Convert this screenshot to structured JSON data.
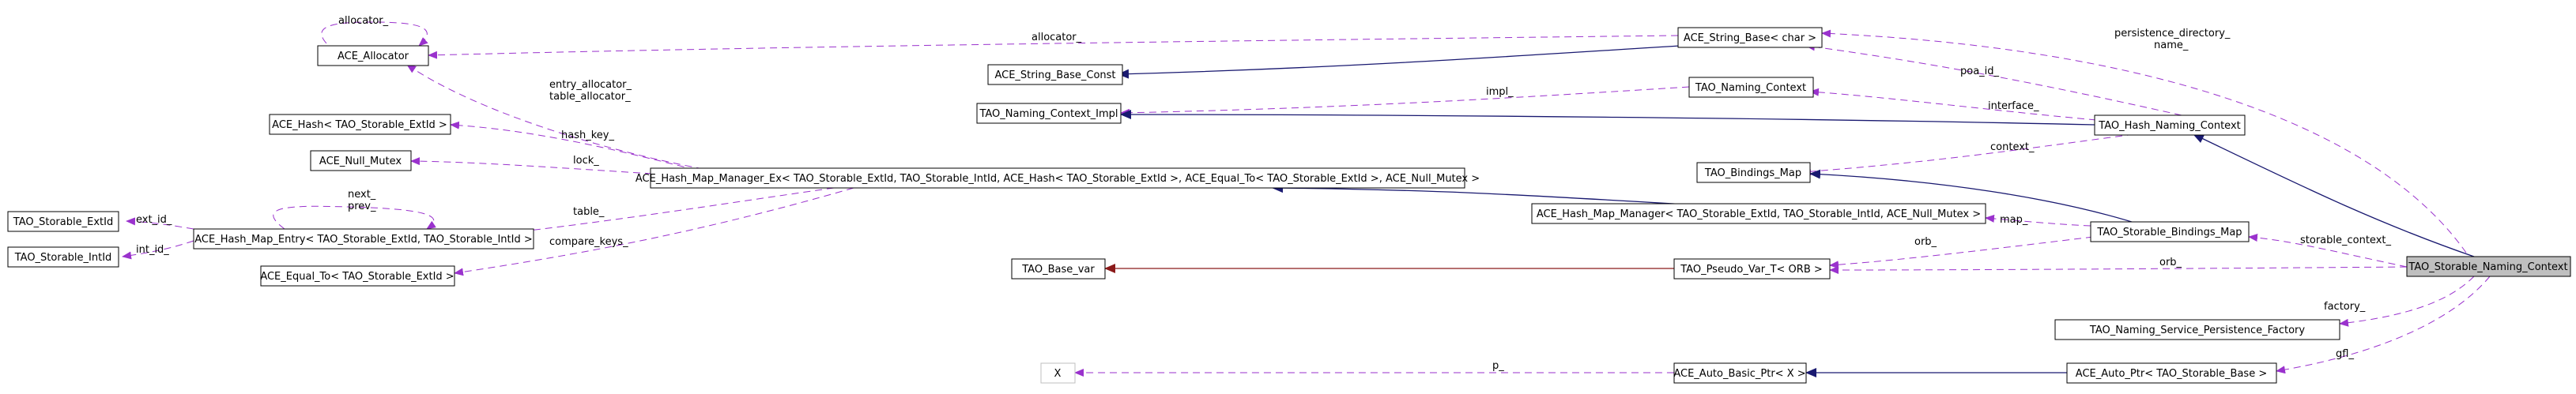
{
  "nodes": {
    "ace_allocator": "ACE_Allocator",
    "ace_string_base": "ACE_String_Base< char >",
    "ace_string_base_const": "ACE_String_Base_Const",
    "tao_naming_context": "TAO_Naming_Context",
    "tao_naming_context_impl": "TAO_Naming_Context_Impl",
    "ace_hash": "ACE_Hash< TAO_Storable_ExtId >",
    "tao_hash_naming_context": "TAO_Hash_Naming_Context",
    "ace_null_mutex": "ACE_Null_Mutex",
    "tao_bindings_map": "TAO_Bindings_Map",
    "ace_hash_map_manager_ex": "ACE_Hash_Map_Manager_Ex< TAO_Storable_ExtId, TAO_Storable_IntId, ACE_Hash< TAO_Storable_ExtId >, ACE_Equal_To< TAO_Storable_ExtId >, ACE_Null_Mutex >",
    "ace_hash_map_manager": "ACE_Hash_Map_Manager< TAO_Storable_ExtId, TAO_Storable_IntId, ACE_Null_Mutex >",
    "tao_storable_extid": "TAO_Storable_ExtId",
    "ace_hash_map_entry": "ACE_Hash_Map_Entry< TAO_Storable_ExtId, TAO_Storable_IntId >",
    "tao_storable_bindings_map": "TAO_Storable_Bindings_Map",
    "tao_storable_intid": "TAO_Storable_IntId",
    "tao_storable_naming_context": "TAO_Storable_Naming_Context",
    "ace_equal_to": "ACE_Equal_To< TAO_Storable_ExtId >",
    "tao_base_var": "TAO_Base_var",
    "tao_pseudo_var": "TAO_Pseudo_Var_T< ORB >",
    "tao_persistence_factory": "TAO_Naming_Service_Persistence_Factory",
    "x": "X",
    "ace_auto_basic_ptr": "ACE_Auto_Basic_Ptr< X >",
    "ace_auto_ptr": "ACE_Auto_Ptr< TAO_Storable_Base >"
  },
  "edge_labels": {
    "allocator_self": "allocator_",
    "allocator": "allocator_",
    "persistence_directory": "persistence_directory_",
    "name": "name_",
    "poa_id": "poa_id_",
    "entry_allocator": "entry_allocator_",
    "table_allocator": "table_allocator_",
    "impl": "impl_",
    "interface": "interface_",
    "hash_key": "hash_key_",
    "lock": "lock_",
    "context": "context_",
    "next": "next_",
    "prev": "prev_",
    "ext_id": "ext_id_",
    "table": "table_",
    "map": "map_",
    "storable_context": "storable_context_",
    "int_id": "int_id_",
    "orb_1": "orb_",
    "orb_2": "orb_",
    "compare_keys": "compare_keys_",
    "factory": "factory_",
    "gfl": "gfl_",
    "p": "p_"
  },
  "colors": {
    "composition_edge": "#9a32cd",
    "inheritance_edge": "#191970",
    "template_edge": "#8b1a1a",
    "highlight_fill": "#bfbfbf"
  }
}
